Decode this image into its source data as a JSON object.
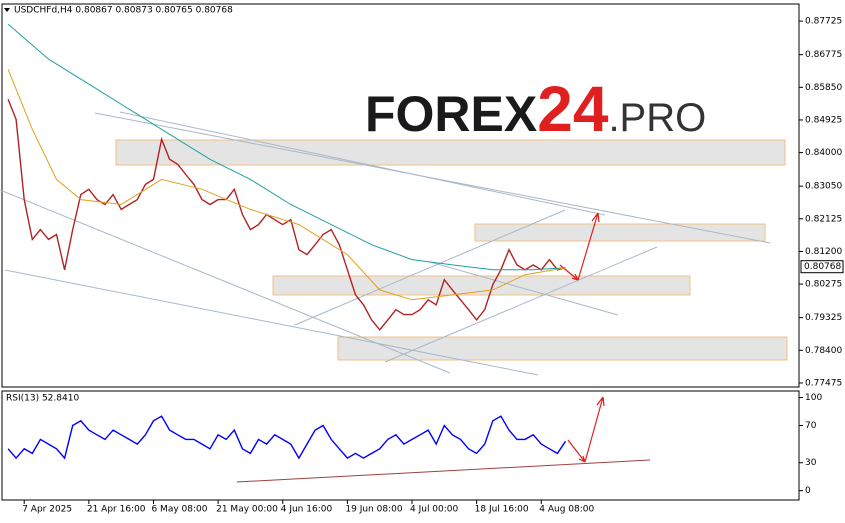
{
  "watermark": {
    "main": "FOREX",
    "number": "24",
    "suffix": ".PRO"
  },
  "chart_data": [
    {
      "type": "line",
      "title": "USDCHFd,H4  0.80867 0.80873 0.80765 0.80768",
      "xlim": [
        -0.75,
        97.9
      ],
      "ylim": [
        0.7736,
        0.8821
      ],
      "yticks": [
        {
          "value": 0.87725,
          "label": "0.87725"
        },
        {
          "value": 0.86775,
          "label": "0.86775"
        },
        {
          "value": 0.8585,
          "label": "0.85850"
        },
        {
          "value": 0.84925,
          "label": "0.84925"
        },
        {
          "value": 0.84,
          "label": "0.84000"
        },
        {
          "value": 0.8305,
          "label": "0.83050"
        },
        {
          "value": 0.82125,
          "label": "0.82125"
        },
        {
          "value": 0.812,
          "label": "0.81200"
        },
        {
          "value": 0.80275,
          "label": "0.80275"
        },
        {
          "value": 0.79325,
          "label": "0.79325"
        },
        {
          "value": 0.784,
          "label": "0.78400"
        },
        {
          "value": 0.77475,
          "label": "0.77475"
        }
      ],
      "last_price": {
        "value": 0.80768,
        "label": "0.80768"
      },
      "grid": false,
      "series": [
        {
          "color": "#b22222",
          "x": [
            0,
            1,
            2,
            3,
            4,
            5,
            6,
            7,
            8,
            9,
            10,
            11,
            12,
            13,
            14,
            15,
            16,
            17,
            18,
            19,
            20,
            21,
            22,
            23,
            24,
            25,
            26,
            27,
            28,
            29,
            30,
            31,
            32,
            33,
            34,
            35,
            36,
            37,
            38,
            39,
            40,
            41,
            42,
            43,
            44,
            45,
            46,
            47,
            48,
            49,
            50,
            51,
            52,
            53,
            54,
            55,
            56,
            57,
            58,
            59,
            60,
            61,
            62,
            63,
            64,
            65,
            66,
            67,
            68,
            69
          ],
          "values": [
            0.8551,
            0.8494,
            0.8267,
            0.8154,
            0.8182,
            0.8154,
            0.8168,
            0.8068,
            0.8182,
            0.8281,
            0.8296,
            0.8267,
            0.8253,
            0.8281,
            0.8239,
            0.8253,
            0.8267,
            0.831,
            0.8324,
            0.8438,
            0.8381,
            0.8367,
            0.8338,
            0.831,
            0.8267,
            0.8253,
            0.8267,
            0.8267,
            0.8296,
            0.8225,
            0.8182,
            0.8196,
            0.8225,
            0.821,
            0.8196,
            0.821,
            0.8125,
            0.8111,
            0.8139,
            0.8168,
            0.8182,
            0.8139,
            0.8068,
            0.7997,
            0.7969,
            0.7926,
            0.7898,
            0.7926,
            0.7955,
            0.7941,
            0.7941,
            0.7955,
            0.7983,
            0.7969,
            0.804,
            0.8011,
            0.7983,
            0.7955,
            0.7926,
            0.7955,
            0.8026,
            0.8068,
            0.8125,
            0.8082,
            0.8068,
            0.8082,
            0.8068,
            0.8097,
            0.8068,
            0.8074
          ]
        },
        {
          "color": "#20a0a0",
          "x": [
            0,
            5,
            10,
            15,
            20,
            25,
            30,
            35,
            40,
            45,
            50,
            55,
            60,
            65,
            69
          ],
          "values": [
            0.8764,
            0.8665,
            0.8594,
            0.8523,
            0.8452,
            0.8381,
            0.8324,
            0.8253,
            0.8196,
            0.8139,
            0.8097,
            0.8082,
            0.8068,
            0.8068,
            0.8074
          ]
        },
        {
          "color": "#e0a020",
          "x": [
            0,
            3,
            6,
            9,
            14,
            19,
            24,
            30,
            36,
            42,
            46,
            50,
            55,
            60,
            64,
            69
          ],
          "values": [
            0.8636,
            0.8466,
            0.8324,
            0.8267,
            0.8253,
            0.8324,
            0.8296,
            0.8239,
            0.8196,
            0.8111,
            0.8011,
            0.7983,
            0.7997,
            0.8011,
            0.8054,
            0.8074
          ]
        }
      ]
    },
    {
      "type": "line",
      "title": "RSI(13) 52.8410",
      "xlim": [
        -0.75,
        97.9
      ],
      "ylim": [
        -10,
        107
      ],
      "yticks": [
        100,
        70,
        30,
        0
      ],
      "xticks": [
        {
          "value": 2,
          "label": "7 Apr 2025"
        },
        {
          "value": 10,
          "label": "21 Apr 16:00"
        },
        {
          "value": 18,
          "label": "6 May 08:00"
        },
        {
          "value": 26,
          "label": "21 May 00:00"
        },
        {
          "value": 34,
          "label": "4 Jun 16:00"
        },
        {
          "value": 42,
          "label": "19 Jun 08:00"
        },
        {
          "value": 50,
          "label": "4 Jul 00:00"
        },
        {
          "value": 58,
          "label": "18 Jul 16:00"
        },
        {
          "value": 66,
          "label": "4 Aug 08:00"
        }
      ],
      "grid": false,
      "series": [
        {
          "color": "#0000ff",
          "x": [
            0,
            1,
            2,
            3,
            4,
            5,
            6,
            7,
            8,
            9,
            10,
            11,
            12,
            13,
            14,
            15,
            16,
            17,
            18,
            19,
            20,
            21,
            22,
            23,
            24,
            25,
            26,
            27,
            28,
            29,
            30,
            31,
            32,
            33,
            34,
            35,
            36,
            37,
            38,
            39,
            40,
            41,
            42,
            43,
            44,
            45,
            46,
            47,
            48,
            49,
            50,
            51,
            52,
            53,
            54,
            55,
            56,
            57,
            58,
            59,
            60,
            61,
            62,
            63,
            64,
            65,
            66,
            67,
            68,
            69
          ],
          "values": [
            45,
            35,
            45,
            40,
            55,
            50,
            45,
            35,
            70,
            75,
            65,
            60,
            55,
            65,
            60,
            55,
            50,
            60,
            75,
            80,
            65,
            60,
            55,
            55,
            50,
            45,
            60,
            55,
            65,
            45,
            40,
            55,
            50,
            60,
            55,
            50,
            35,
            50,
            65,
            70,
            55,
            45,
            35,
            40,
            35,
            40,
            45,
            55,
            60,
            50,
            55,
            60,
            65,
            50,
            70,
            60,
            55,
            45,
            40,
            50,
            75,
            80,
            65,
            55,
            55,
            60,
            50,
            45,
            40,
            53
          ]
        }
      ]
    }
  ]
}
